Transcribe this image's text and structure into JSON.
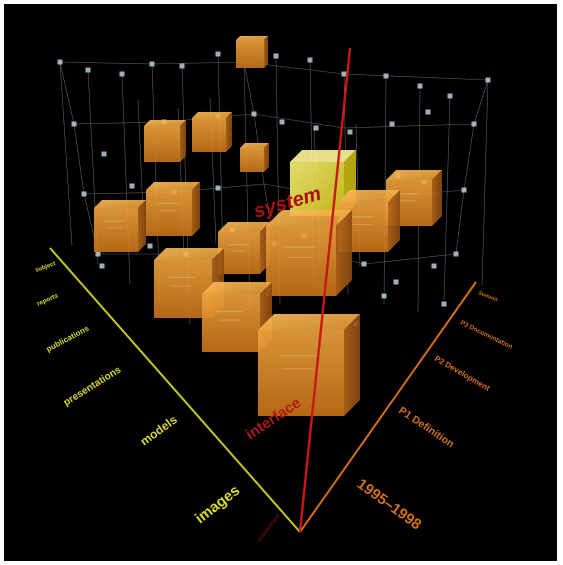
{
  "view": {
    "background": "#000000",
    "frame": "#ffffff"
  },
  "axes": {
    "y_axis_color": "#c8c820",
    "z_axis_color": "#d07018",
    "vertical_axis_color": "#c81818",
    "y_labels": [
      "images",
      "models",
      "presentations",
      "publications",
      "reports",
      "subject"
    ],
    "z_labels": [
      "1995–1998",
      "P1 Definition",
      "P2 Development",
      "P3 Documentation",
      "Summit"
    ],
    "vertical_labels": [
      "interface",
      "system"
    ],
    "small_label": "environment"
  },
  "cubes": [
    {
      "name": "cube-top",
      "shade": "#e8a038"
    },
    {
      "name": "cube-upper-left-1",
      "shade": "#e8a038"
    },
    {
      "name": "cube-upper-left-2",
      "shade": "#e8a038"
    },
    {
      "name": "cube-upper-mid",
      "shade": "#e8a038"
    },
    {
      "name": "cube-left-mid",
      "shade": "#e8a038"
    },
    {
      "name": "cube-left-mid-2",
      "shade": "#e8a038"
    },
    {
      "name": "cube-system-yellow",
      "shade": "#f5e830"
    },
    {
      "name": "cube-right-1",
      "shade": "#e8a038"
    },
    {
      "name": "cube-right-2",
      "shade": "#e8a038"
    },
    {
      "name": "cube-center-small",
      "shade": "#e8a038"
    },
    {
      "name": "cube-center-large",
      "shade": "#e8a038"
    },
    {
      "name": "cube-left-low",
      "shade": "#e8a038"
    },
    {
      "name": "cube-mid-low",
      "shade": "#e8a038"
    },
    {
      "name": "cube-front-large",
      "shade": "#e8a038"
    }
  ]
}
